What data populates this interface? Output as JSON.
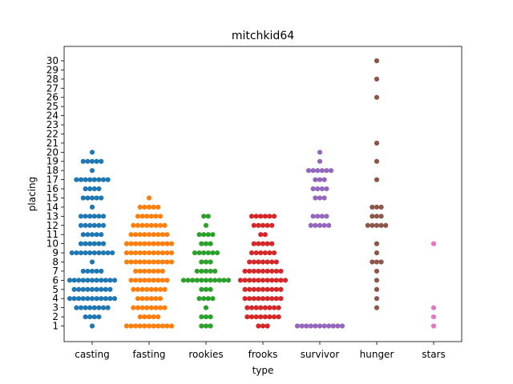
{
  "chart_data": {
    "type": "scatter",
    "style": "swarm",
    "title": "mitchkid64",
    "xlabel": "type",
    "ylabel": "placing",
    "categories": [
      "casting",
      "fasting",
      "rookies",
      "frooks",
      "survivor",
      "hunger",
      "stars"
    ],
    "colors": [
      "#1f77b4",
      "#ff7f0e",
      "#2ca02c",
      "#d62728",
      "#9467bd",
      "#8c564b",
      "#e377c2"
    ],
    "yticks": [
      1,
      2,
      3,
      4,
      5,
      6,
      7,
      8,
      9,
      10,
      11,
      12,
      13,
      14,
      15,
      16,
      17,
      18,
      19,
      20,
      21,
      22,
      23,
      24,
      25,
      26,
      27,
      28,
      29,
      30
    ],
    "ylim": [
      0,
      31
    ],
    "grid": false,
    "series": [
      {
        "category": "casting",
        "values": [
          {
            "y": 1,
            "n": 1
          },
          {
            "y": 2,
            "n": 4
          },
          {
            "y": 3,
            "n": 8
          },
          {
            "y": 4,
            "n": 11
          },
          {
            "y": 5,
            "n": 9
          },
          {
            "y": 6,
            "n": 11
          },
          {
            "y": 7,
            "n": 5
          },
          {
            "y": 8,
            "n": 1
          },
          {
            "y": 9,
            "n": 10
          },
          {
            "y": 10,
            "n": 6
          },
          {
            "y": 11,
            "n": 5
          },
          {
            "y": 12,
            "n": 6
          },
          {
            "y": 13,
            "n": 6
          },
          {
            "y": 14,
            "n": 1
          },
          {
            "y": 15,
            "n": 5
          },
          {
            "y": 16,
            "n": 4
          },
          {
            "y": 17,
            "n": 8
          },
          {
            "y": 18,
            "n": 1
          },
          {
            "y": 19,
            "n": 5
          },
          {
            "y": 20,
            "n": 1
          }
        ]
      },
      {
        "category": "fasting",
        "values": [
          {
            "y": 1,
            "n": 11
          },
          {
            "y": 2,
            "n": 5
          },
          {
            "y": 3,
            "n": 8
          },
          {
            "y": 4,
            "n": 6
          },
          {
            "y": 5,
            "n": 8
          },
          {
            "y": 6,
            "n": 9
          },
          {
            "y": 7,
            "n": 7
          },
          {
            "y": 8,
            "n": 11
          },
          {
            "y": 9,
            "n": 11
          },
          {
            "y": 10,
            "n": 11
          },
          {
            "y": 11,
            "n": 9
          },
          {
            "y": 12,
            "n": 8
          },
          {
            "y": 13,
            "n": 6
          },
          {
            "y": 14,
            "n": 5
          },
          {
            "y": 15,
            "n": 1
          }
        ]
      },
      {
        "category": "rookies",
        "values": [
          {
            "y": 1,
            "n": 3
          },
          {
            "y": 2,
            "n": 3
          },
          {
            "y": 3,
            "n": 1
          },
          {
            "y": 4,
            "n": 4
          },
          {
            "y": 5,
            "n": 3
          },
          {
            "y": 6,
            "n": 11
          },
          {
            "y": 7,
            "n": 5
          },
          {
            "y": 8,
            "n": 3
          },
          {
            "y": 9,
            "n": 6
          },
          {
            "y": 10,
            "n": 3
          },
          {
            "y": 11,
            "n": 4
          },
          {
            "y": 12,
            "n": 1
          },
          {
            "y": 13,
            "n": 2
          }
        ]
      },
      {
        "category": "frooks",
        "values": [
          {
            "y": 1,
            "n": 3
          },
          {
            "y": 2,
            "n": 8
          },
          {
            "y": 3,
            "n": 8
          },
          {
            "y": 4,
            "n": 9
          },
          {
            "y": 5,
            "n": 9
          },
          {
            "y": 6,
            "n": 11
          },
          {
            "y": 7,
            "n": 9
          },
          {
            "y": 8,
            "n": 7
          },
          {
            "y": 9,
            "n": 6
          },
          {
            "y": 10,
            "n": 5
          },
          {
            "y": 11,
            "n": 2
          },
          {
            "y": 12,
            "n": 5
          },
          {
            "y": 13,
            "n": 6
          }
        ]
      },
      {
        "category": "survivor",
        "values": [
          {
            "y": 1,
            "n": 11
          },
          {
            "y": 12,
            "n": 5
          },
          {
            "y": 13,
            "n": 4
          },
          {
            "y": 15,
            "n": 3
          },
          {
            "y": 16,
            "n": 4
          },
          {
            "y": 17,
            "n": 3
          },
          {
            "y": 18,
            "n": 6
          },
          {
            "y": 19,
            "n": 1
          },
          {
            "y": 20,
            "n": 1
          }
        ]
      },
      {
        "category": "hunger",
        "values": [
          {
            "y": 3,
            "n": 1
          },
          {
            "y": 4,
            "n": 1
          },
          {
            "y": 5,
            "n": 1
          },
          {
            "y": 6,
            "n": 1
          },
          {
            "y": 7,
            "n": 1
          },
          {
            "y": 8,
            "n": 3
          },
          {
            "y": 9,
            "n": 1
          },
          {
            "y": 10,
            "n": 1
          },
          {
            "y": 12,
            "n": 5
          },
          {
            "y": 13,
            "n": 3
          },
          {
            "y": 14,
            "n": 3
          },
          {
            "y": 17,
            "n": 1
          },
          {
            "y": 19,
            "n": 1
          },
          {
            "y": 21,
            "n": 1
          },
          {
            "y": 26,
            "n": 1
          },
          {
            "y": 28,
            "n": 1
          },
          {
            "y": 30,
            "n": 1
          }
        ]
      },
      {
        "category": "stars",
        "values": [
          {
            "y": 1,
            "n": 1
          },
          {
            "y": 2,
            "n": 1
          },
          {
            "y": 3,
            "n": 1
          },
          {
            "y": 10,
            "n": 1
          }
        ]
      }
    ]
  }
}
